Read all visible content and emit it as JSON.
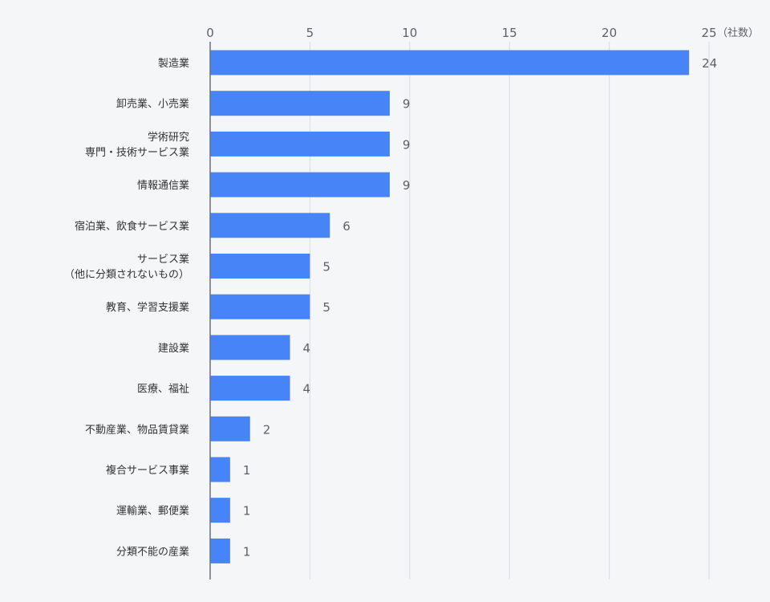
{
  "chart_data": {
    "type": "bar",
    "orientation": "horizontal",
    "categories": [
      [
        "製造業"
      ],
      [
        "卸売業、小売業"
      ],
      [
        "学術研究",
        "専門・技術サービス業"
      ],
      [
        "情報通信業"
      ],
      [
        "宿泊業、飲食サービス業"
      ],
      [
        "サービス業",
        "（他に分類されないもの）"
      ],
      [
        "教育、学習支援業"
      ],
      [
        "建設業"
      ],
      [
        "医療、福祉"
      ],
      [
        "不動産業、物品賃貸業"
      ],
      [
        "複合サービス事業"
      ],
      [
        "運輸業、郵便業"
      ],
      [
        "分類不能の産業"
      ]
    ],
    "values": [
      24,
      9,
      9,
      9,
      6,
      5,
      5,
      4,
      4,
      2,
      1,
      1,
      1
    ],
    "x_ticks": [
      "0",
      "5",
      "10",
      "15",
      "20",
      "25"
    ],
    "xlim": [
      0,
      25
    ],
    "unit": "（社数）",
    "bar_color": "#4684f7",
    "grid": true,
    "legend": "none"
  }
}
